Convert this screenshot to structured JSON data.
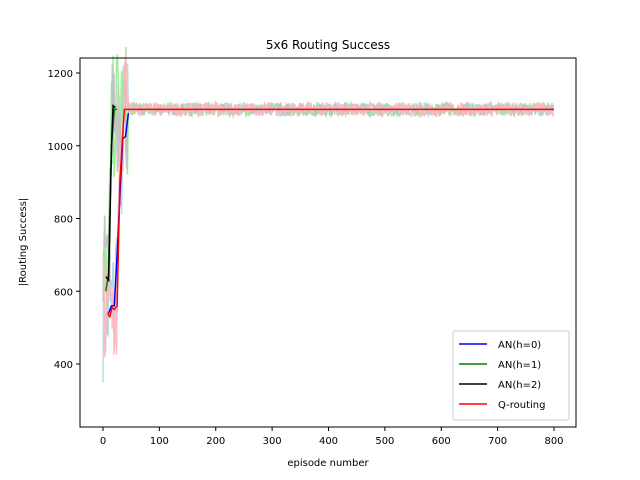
{
  "chart_data": {
    "type": "line",
    "title": "5x6 Routing Success",
    "xlabel": "episode number",
    "ylabel": "|Routing Success|",
    "xlim": [
      -40,
      840
    ],
    "ylim": [
      230,
      1250
    ],
    "xticks": [
      0,
      100,
      200,
      300,
      400,
      500,
      600,
      700,
      800
    ],
    "yticks": [
      400,
      600,
      800,
      1000,
      1200
    ],
    "grid": false,
    "legend_position": "lower right",
    "series": [
      {
        "name": "AN(h=0)",
        "color": "#0000ff",
        "raw_color": "#add8e6",
        "x": [
          10,
          15,
          20,
          25,
          30,
          35,
          40,
          45,
          800
        ],
        "values": [
          540,
          560,
          560,
          700,
          860,
          1020,
          1025,
          1090,
          1100
        ]
      },
      {
        "name": "AN(h=1)",
        "color": "#008000",
        "raw_color": "#90ee90",
        "x": [
          5,
          10,
          15,
          20,
          25,
          800
        ],
        "values": [
          600,
          650,
          1000,
          1100,
          1100,
          1100
        ]
      },
      {
        "name": "AN(h=2)",
        "color": "#000000",
        "raw_color": "#c0c0c0",
        "x": [
          5,
          10,
          15,
          18,
          22,
          800
        ],
        "values": [
          640,
          630,
          1000,
          1110,
          1105,
          1100
        ]
      },
      {
        "name": "Q-routing",
        "color": "#ff0000",
        "raw_color": "#ffb6c1",
        "x": [
          8,
          12,
          16,
          20,
          25,
          30,
          35,
          38,
          800
        ],
        "values": [
          540,
          530,
          555,
          550,
          560,
          900,
          1030,
          1100,
          1100
        ]
      }
    ]
  }
}
